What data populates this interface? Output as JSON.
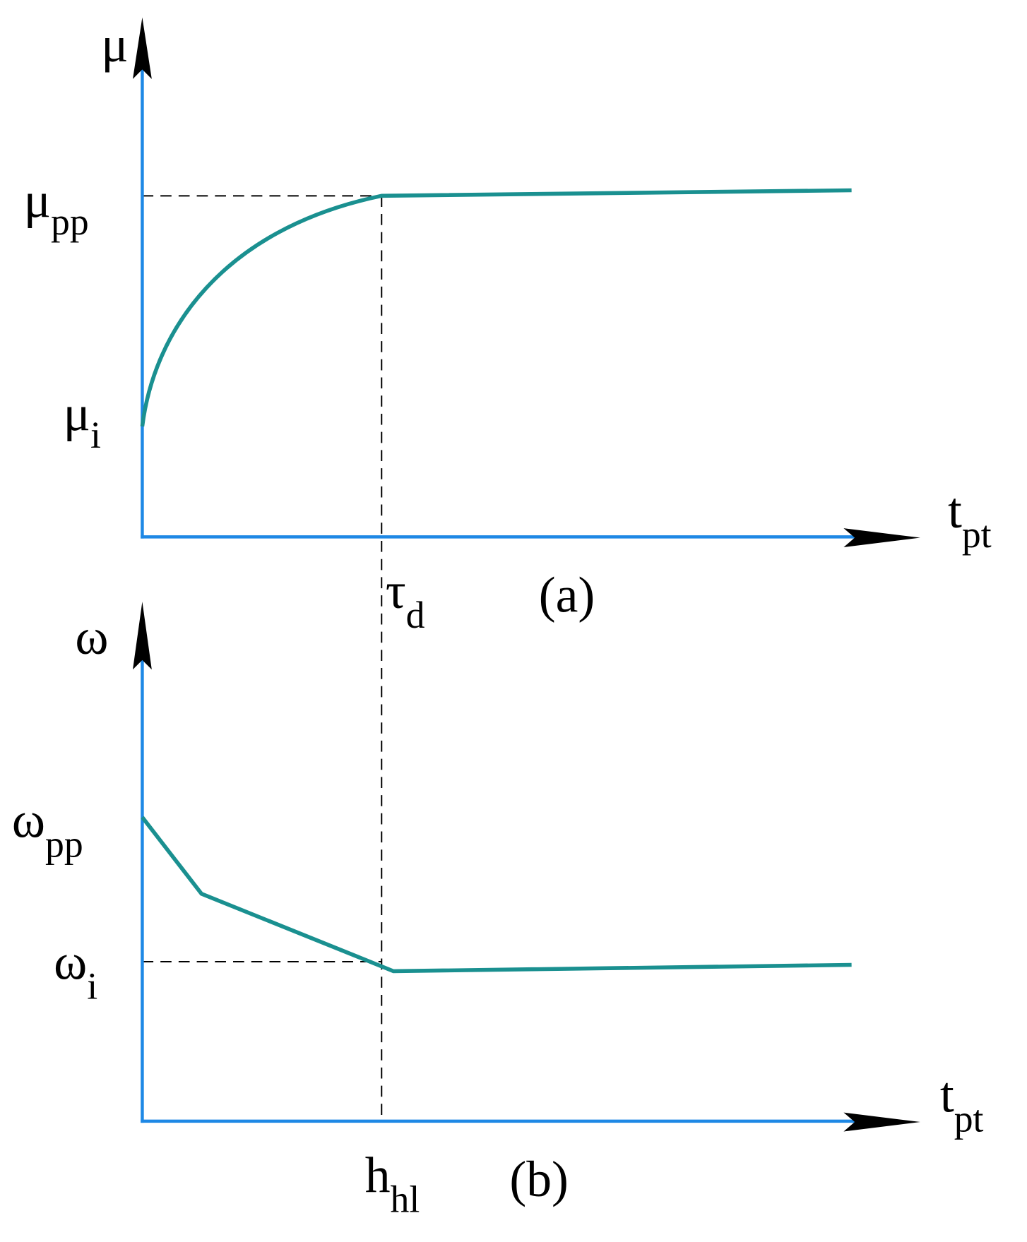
{
  "panels": [
    {
      "y_axis_label": "μ",
      "upper_level": {
        "base": "μ",
        "sub": "pp"
      },
      "lower_level": {
        "base": "μ",
        "sub": "i"
      },
      "x_axis_label": {
        "base": "t",
        "sub": "pt"
      },
      "x_marker": {
        "base": "τ",
        "sub": "d"
      },
      "caption": "(a)"
    },
    {
      "y_axis_label": "ω",
      "upper_level": {
        "base": "ω",
        "sub": "pp"
      },
      "lower_level": {
        "base": "ω",
        "sub": "i"
      },
      "x_axis_label": {
        "base": "t",
        "sub": "pt"
      },
      "x_marker": {
        "base": "h",
        "sub": "hl"
      },
      "caption": "(b)"
    }
  ]
}
